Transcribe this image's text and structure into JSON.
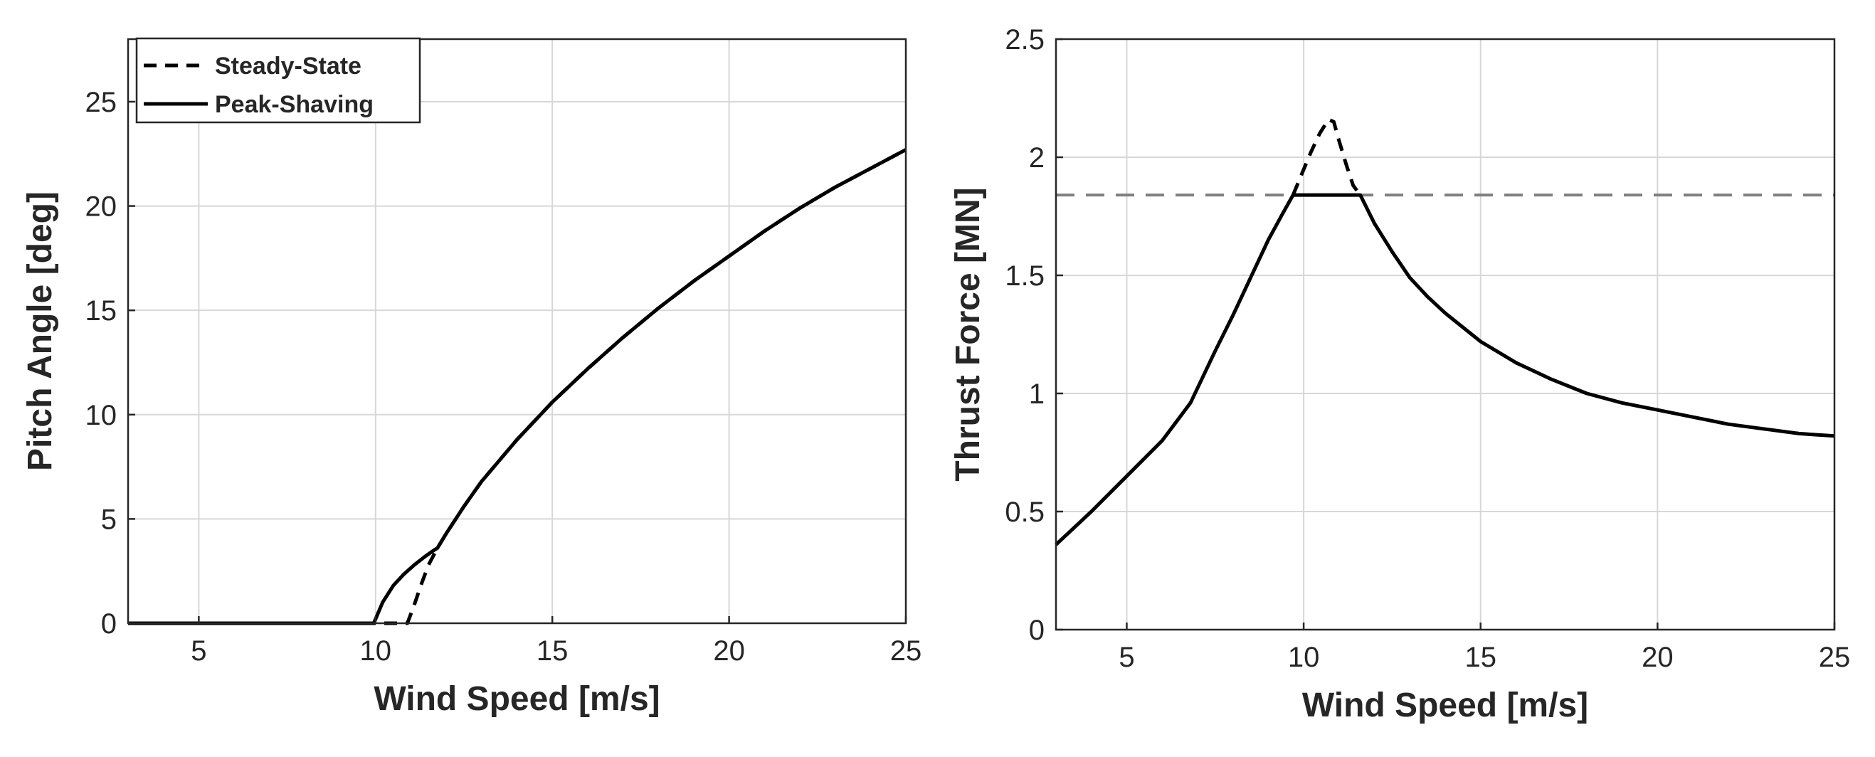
{
  "chart_data": [
    {
      "type": "line",
      "xlabel": "Wind Speed [m/s]",
      "ylabel": "Pitch Angle [deg]",
      "xlim": [
        3,
        25
      ],
      "ylim": [
        0,
        28
      ],
      "xticks": [
        5,
        10,
        15,
        20,
        25
      ],
      "yticks": [
        0,
        5,
        10,
        15,
        20,
        25
      ],
      "grid": true,
      "legend": {
        "placement": "top-left",
        "entries": [
          "Steady-State",
          "Peak-Shaving"
        ]
      },
      "series": [
        {
          "name": "Steady-State",
          "style": "dashed",
          "x": [
            3,
            10.9,
            11.1,
            11.3,
            11.5,
            11.75,
            12,
            12.5,
            13,
            14,
            15,
            16,
            17,
            18,
            19,
            20,
            21,
            22,
            23,
            24,
            25
          ],
          "y": [
            0,
            0,
            0.9,
            1.9,
            2.8,
            3.6,
            4.3,
            5.6,
            6.8,
            8.8,
            10.6,
            12.2,
            13.7,
            15.1,
            16.4,
            17.6,
            18.8,
            19.9,
            20.9,
            21.8,
            22.7
          ]
        },
        {
          "name": "Peak-Shaving",
          "style": "solid",
          "x": [
            3,
            9.95,
            10.2,
            10.5,
            10.8,
            11.1,
            11.4,
            11.65,
            11.75,
            12,
            12.5,
            13,
            14,
            15,
            16,
            17,
            18,
            19,
            20,
            21,
            22,
            23,
            24,
            25
          ],
          "y": [
            0,
            0,
            1.0,
            1.8,
            2.35,
            2.8,
            3.2,
            3.5,
            3.6,
            4.3,
            5.6,
            6.8,
            8.8,
            10.6,
            12.2,
            13.7,
            15.1,
            16.4,
            17.6,
            18.8,
            19.9,
            20.9,
            21.8,
            22.7
          ]
        }
      ]
    },
    {
      "type": "line",
      "xlabel": "Wind Speed [m/s]",
      "ylabel": "Thrust Force [MN]",
      "xlim": [
        3,
        25
      ],
      "ylim": [
        0,
        2.5
      ],
      "xticks": [
        5,
        10,
        15,
        20,
        25
      ],
      "yticks": [
        0,
        0.5,
        1,
        1.5,
        2,
        2.5
      ],
      "grid": true,
      "reference_line": {
        "y": 1.84,
        "style": "dashed",
        "color": "#7f7f7f"
      },
      "series": [
        {
          "name": "Steady-State",
          "style": "dashed",
          "x": [
            9.7,
            9.95,
            10.2,
            10.45,
            10.7,
            10.85,
            11.0,
            11.2,
            11.4,
            11.6
          ],
          "y": [
            1.84,
            1.93,
            2.02,
            2.1,
            2.16,
            2.15,
            2.07,
            1.97,
            1.88,
            1.84
          ]
        },
        {
          "name": "Peak-Shaving",
          "style": "solid",
          "x": [
            3,
            4,
            5,
            6,
            6.8,
            7.5,
            8,
            8.5,
            9,
            9.4,
            9.7,
            10,
            10.5,
            11,
            11.6,
            12,
            12.5,
            13,
            13.5,
            14,
            15,
            16,
            17,
            18,
            19,
            20,
            21,
            22,
            23,
            24,
            25
          ],
          "y": [
            0.36,
            0.5,
            0.65,
            0.8,
            0.96,
            1.18,
            1.33,
            1.49,
            1.65,
            1.76,
            1.84,
            1.84,
            1.84,
            1.84,
            1.84,
            1.72,
            1.6,
            1.49,
            1.41,
            1.34,
            1.22,
            1.13,
            1.06,
            1.0,
            0.96,
            0.93,
            0.9,
            0.87,
            0.85,
            0.83,
            0.82
          ]
        }
      ]
    }
  ]
}
